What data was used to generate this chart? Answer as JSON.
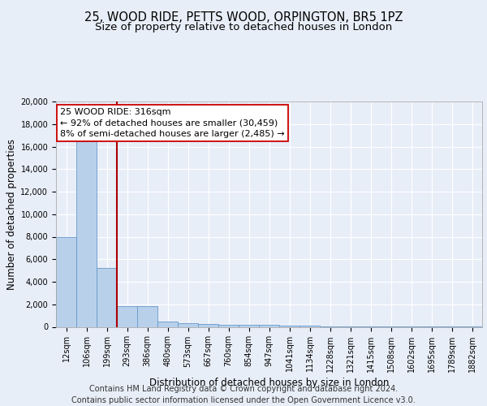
{
  "title_line1": "25, WOOD RIDE, PETTS WOOD, ORPINGTON, BR5 1PZ",
  "title_line2": "Size of property relative to detached houses in London",
  "xlabel": "Distribution of detached houses by size in London",
  "ylabel": "Number of detached properties",
  "categories": [
    "12sqm",
    "106sqm",
    "199sqm",
    "293sqm",
    "386sqm",
    "480sqm",
    "573sqm",
    "667sqm",
    "760sqm",
    "854sqm",
    "947sqm",
    "1041sqm",
    "1134sqm",
    "1228sqm",
    "1321sqm",
    "1415sqm",
    "1508sqm",
    "1602sqm",
    "1695sqm",
    "1789sqm",
    "1882sqm"
  ],
  "values": [
    8000,
    16500,
    5200,
    1850,
    1850,
    500,
    330,
    250,
    200,
    170,
    150,
    120,
    80,
    55,
    35,
    25,
    18,
    12,
    8,
    6,
    4
  ],
  "bar_color": "#b8d0ea",
  "bar_edge_color": "#6699cc",
  "property_line_x": 2.5,
  "property_line_color": "#aa0000",
  "annotation_text": "25 WOOD RIDE: 316sqm\n← 92% of detached houses are smaller (30,459)\n8% of semi-detached houses are larger (2,485) →",
  "annotation_box_color": "#ffffff",
  "annotation_box_edge_color": "#cc0000",
  "ylim": [
    0,
    20000
  ],
  "yticks": [
    0,
    2000,
    4000,
    6000,
    8000,
    10000,
    12000,
    14000,
    16000,
    18000,
    20000
  ],
  "footer_line1": "Contains HM Land Registry data © Crown copyright and database right 2024.",
  "footer_line2": "Contains public sector information licensed under the Open Government Licence v3.0.",
  "background_color": "#e8eef8",
  "plot_bg_color": "#e8eef8",
  "grid_color": "#ffffff",
  "title_fontsize": 10.5,
  "subtitle_fontsize": 9.5,
  "axis_label_fontsize": 8.5,
  "tick_fontsize": 7,
  "annotation_fontsize": 8,
  "footer_fontsize": 7
}
